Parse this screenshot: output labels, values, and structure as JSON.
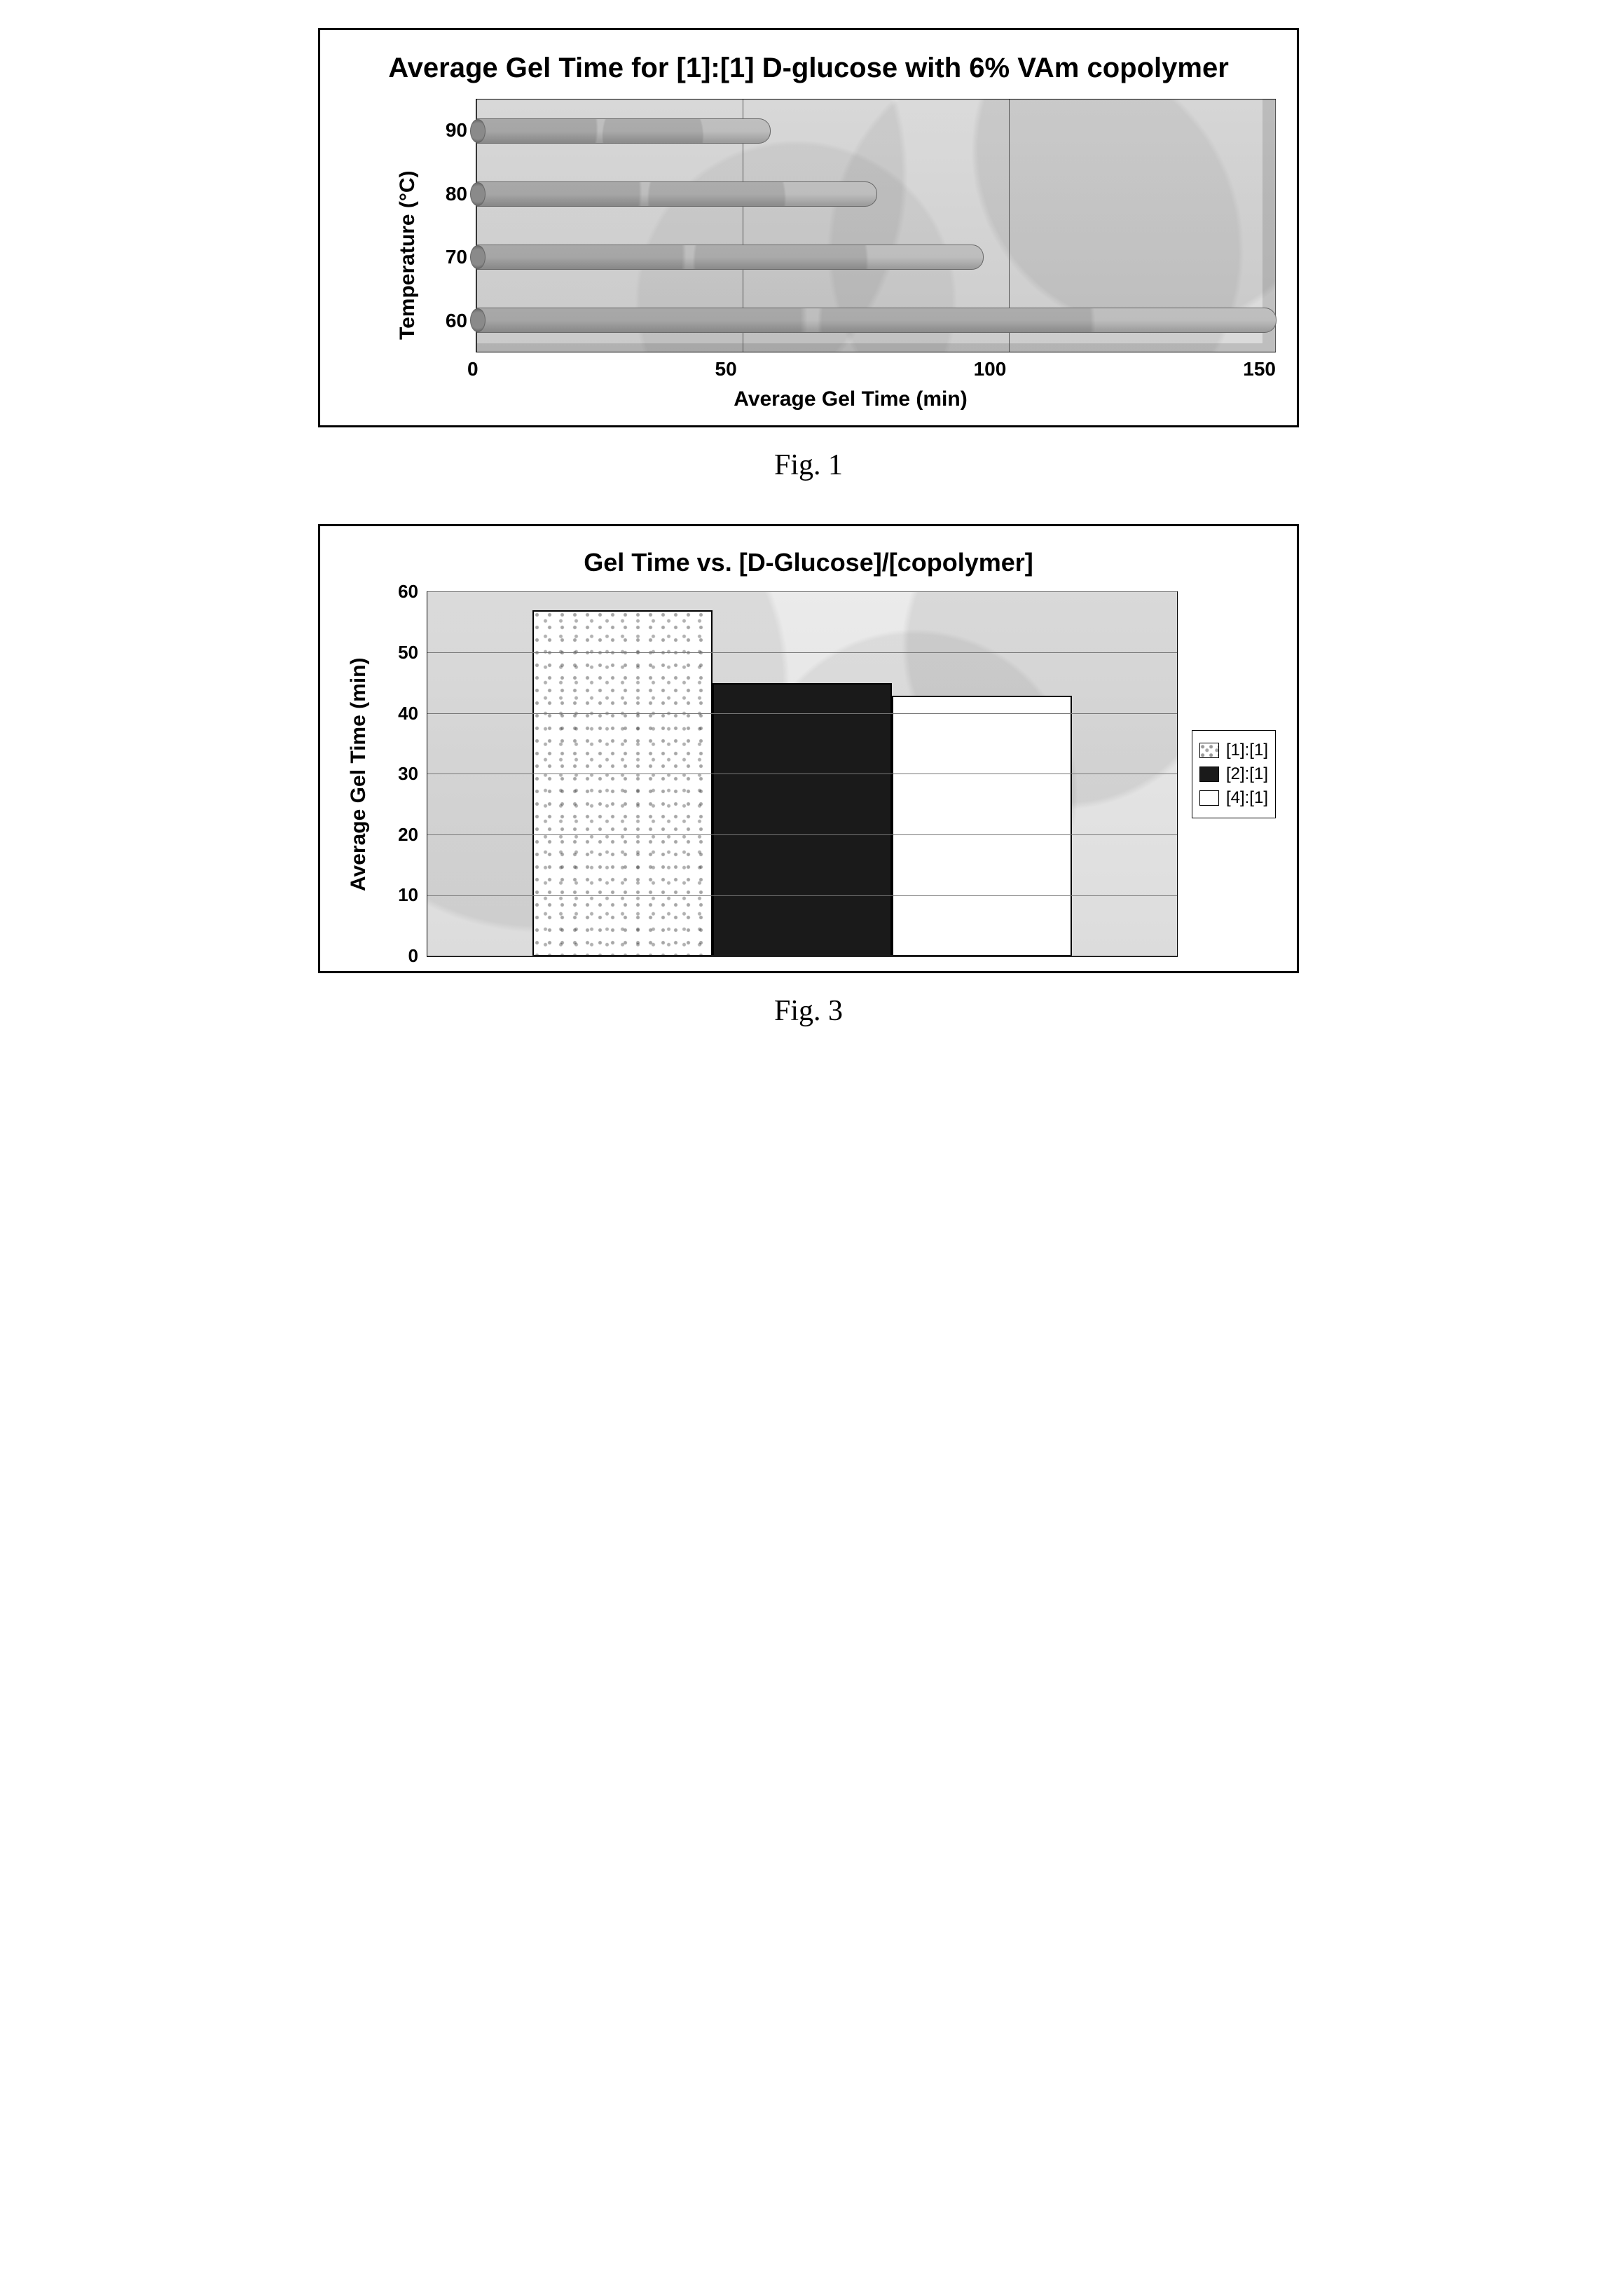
{
  "figure1": {
    "caption": "Fig. 1",
    "chart": {
      "type": "horizontal-bar-3d",
      "title": "Average Gel Time for [1]:[1] D-glucose with 6% VAm copolymer",
      "y_axis_title": "Temperature (°C)",
      "x_axis_title": "Average Gel Time (min)",
      "categories": [
        "90",
        "80",
        "70",
        "60"
      ],
      "values": [
        55,
        75,
        95,
        155
      ],
      "xlim": [
        0,
        150
      ],
      "xticks": [
        0,
        50,
        100,
        150
      ],
      "bar_fill": "#bfbfbf",
      "bar_border": "#666666",
      "plot_bg_texture": "#e0e0e0",
      "grid_color": "#555555",
      "title_fontsize": 40,
      "axis_label_fontsize": 30,
      "tick_fontsize": 28
    }
  },
  "figure3": {
    "caption": "Fig. 3",
    "chart": {
      "type": "bar",
      "title": "Gel Time vs. [D-Glucose]/[copolymer]",
      "y_axis_title": "Average Gel Time (min)",
      "ylim": [
        0,
        60
      ],
      "ytick_step": 10,
      "yticks": [
        0,
        10,
        20,
        30,
        40,
        50,
        60
      ],
      "series": [
        {
          "label": "[1]:[1]",
          "value": 57,
          "fill": "#ffffff",
          "pattern": "dots",
          "border": "#000000"
        },
        {
          "label": "[2]:[1]",
          "value": 45,
          "fill": "#1a1a1a",
          "pattern": "solid",
          "border": "#000000"
        },
        {
          "label": "[4]:[1]",
          "value": 43,
          "fill": "#ffffff",
          "pattern": "solid",
          "border": "#000000"
        }
      ],
      "plot_bg_texture": "#e3e3e3",
      "grid_color": "#777777",
      "title_fontsize": 36,
      "axis_label_fontsize": 30,
      "tick_fontsize": 26,
      "legend_fontsize": 24
    }
  }
}
